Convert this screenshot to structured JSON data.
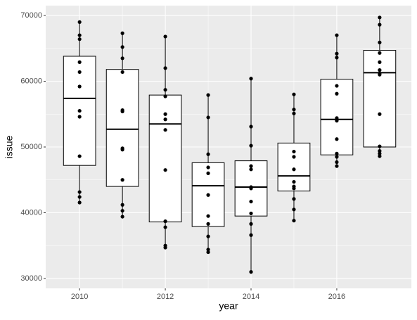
{
  "chart_data": {
    "type": "boxplot",
    "x_label": "year",
    "y_label": "issue",
    "xlim": [
      2009.21,
      2017.74
    ],
    "xticks": [
      2010,
      2012,
      2014,
      2016
    ],
    "ylim": [
      28500,
      71500
    ],
    "yticks": [
      30000,
      40000,
      50000,
      60000,
      70000
    ],
    "grid": true,
    "boxes": [
      {
        "x": 2010,
        "whisker_low": 41550,
        "q1": 47200,
        "median": 57400,
        "q3": 63800,
        "whisker_high": 69000,
        "points": [
          69000,
          67000,
          66400,
          62900,
          61400,
          59200,
          55500,
          54600,
          48600,
          43150,
          42400,
          41550
        ]
      },
      {
        "x": 2011,
        "whisker_low": 39400,
        "q1": 44000,
        "median": 52700,
        "q3": 61800,
        "whisker_high": 67300,
        "points": [
          67300,
          65200,
          63500,
          61400,
          55600,
          55400,
          49800,
          49600,
          45000,
          41200,
          40300,
          39400
        ]
      },
      {
        "x": 2012,
        "whisker_low": 34700,
        "q1": 38600,
        "median": 53500,
        "q3": 57900,
        "whisker_high": 66800,
        "points": [
          66800,
          62000,
          58700,
          57700,
          55000,
          54200,
          52600,
          46500,
          38700,
          37800,
          35000,
          34700
        ]
      },
      {
        "x": 2013,
        "whisker_low": 34000,
        "q1": 37900,
        "median": 44100,
        "q3": 47600,
        "whisker_high": 57900,
        "points": [
          57900,
          54500,
          48900,
          46900,
          46000,
          42700,
          39500,
          38300,
          36400,
          34400,
          34000
        ]
      },
      {
        "x": 2014,
        "whisker_low": 31000,
        "q1": 39500,
        "median": 43900,
        "q3": 47900,
        "whisker_high": 60400,
        "points": [
          60400,
          53100,
          50200,
          47100,
          46600,
          43900,
          43700,
          41700,
          39900,
          38300,
          36600,
          31000
        ]
      },
      {
        "x": 2015,
        "whisker_low": 38800,
        "q1": 43300,
        "median": 45600,
        "q3": 50600,
        "whisker_high": 58000,
        "points": [
          58000,
          55700,
          55100,
          49300,
          48500,
          46600,
          44700,
          44000,
          43700,
          42100,
          40500,
          38800
        ]
      },
      {
        "x": 2016,
        "whisker_low": 47100,
        "q1": 48800,
        "median": 54200,
        "q3": 60300,
        "whisker_high": 67000,
        "points": [
          67000,
          64200,
          63600,
          59300,
          58100,
          54400,
          54000,
          51200,
          49000,
          48500,
          47700,
          47100
        ]
      },
      {
        "x": 2017,
        "whisker_low": 48600,
        "q1": 50000,
        "median": 61300,
        "q3": 64700,
        "whisker_high": 69700,
        "points": [
          69700,
          68600,
          65900,
          64300,
          62900,
          61700,
          61200,
          61000,
          55000,
          50100,
          49400,
          49000,
          48600
        ]
      }
    ]
  }
}
